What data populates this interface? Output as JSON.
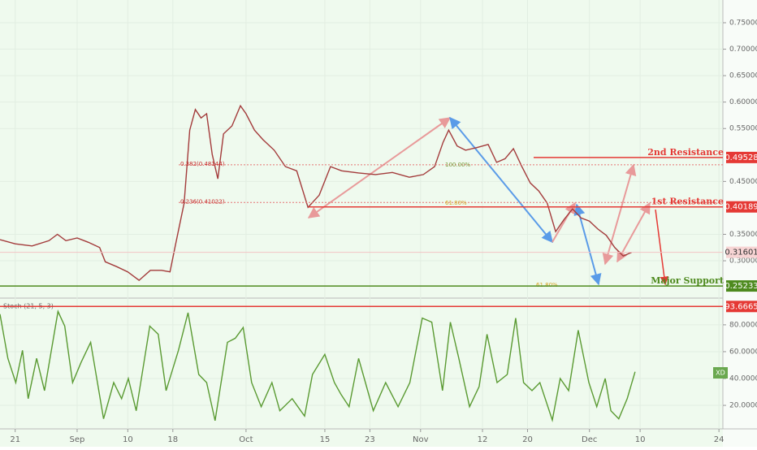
{
  "chart_data": [
    {
      "type": "line",
      "ylim": [
        0.2325,
        0.793
      ],
      "yticks": [
        {
          "value": 0.75,
          "label": "0.75000"
        },
        {
          "value": 0.7,
          "label": "0.70000"
        },
        {
          "value": 0.65,
          "label": "0.65000"
        },
        {
          "value": 0.6,
          "label": "0.60000"
        },
        {
          "value": 0.55,
          "label": "0.55000"
        },
        {
          "value": 0.45,
          "label": "0.45000"
        },
        {
          "value": 0.35,
          "label": "0.35000"
        },
        {
          "value": 0.3,
          "label": "0.30000"
        }
      ],
      "xlim": [
        -2.7,
        125.7
      ],
      "series": [
        {
          "color": "#a33b3b",
          "x": [
            -2.7,
            0,
            3,
            6,
            7.5,
            9,
            11,
            13,
            15,
            16,
            18,
            20,
            22,
            24,
            26,
            27.5,
            28.5,
            30,
            31,
            32,
            33,
            34,
            35,
            36,
            37,
            38.5,
            40,
            41,
            42.5,
            44,
            46,
            48,
            50,
            52,
            54,
            56,
            58,
            61,
            64,
            67,
            70,
            72.5,
            74.5,
            76,
            77,
            78.5,
            80,
            82,
            84,
            85.5,
            87,
            88.5,
            90,
            91.5,
            93,
            94.5,
            96,
            97.5,
            99,
            100.5,
            102,
            103.5,
            105,
            106.5,
            108,
            109.5
          ],
          "values": [
            0.34,
            0.332,
            0.328,
            0.338,
            0.35,
            0.338,
            0.343,
            0.335,
            0.325,
            0.298,
            0.289,
            0.279,
            0.263,
            0.282,
            0.282,
            0.279,
            0.332,
            0.409,
            0.547,
            0.586,
            0.57,
            0.578,
            0.501,
            0.455,
            0.54,
            0.555,
            0.593,
            0.578,
            0.547,
            0.529,
            0.509,
            0.478,
            0.47,
            0.401,
            0.424,
            0.478,
            0.47,
            0.466,
            0.463,
            0.467,
            0.458,
            0.463,
            0.478,
            0.524,
            0.547,
            0.517,
            0.509,
            0.514,
            0.52,
            0.486,
            0.493,
            0.512,
            0.478,
            0.447,
            0.432,
            0.409,
            0.355,
            0.378,
            0.398,
            0.381,
            0.375,
            0.36,
            0.348,
            0.325,
            0.309,
            0.316
          ]
        }
      ],
      "levels": [
        {
          "name": "2nd Resistance",
          "value": 0.49528,
          "color": "#e53935"
        },
        {
          "name": "1st Resistance",
          "value": 0.40189,
          "color": "#e53935"
        },
        {
          "name": "Major Support",
          "value": 0.25233,
          "color": "#4e8a1e"
        }
      ],
      "current_price": 0.31601,
      "fib_levels": [
        {
          "label": "0.382(0.48144)",
          "value": 0.48144
        },
        {
          "label": "0.236(0.41022)",
          "value": 0.41022
        }
      ],
      "annotations": [
        "100.00%",
        "61.80%",
        "61.80%"
      ]
    },
    {
      "type": "line",
      "title": "Stoch (21, 5, 3)",
      "ylim": [
        4.3,
        99.3
      ],
      "yticks": [
        {
          "value": 80,
          "label": "80.0000"
        },
        {
          "value": 60,
          "label": "60.0000"
        },
        {
          "value": 40,
          "label": "40.0000"
        },
        {
          "value": 20,
          "label": "20.0000"
        }
      ],
      "xlim": [
        -2.7,
        125.7
      ],
      "xticks": [
        {
          "value": 0,
          "label": "21"
        },
        {
          "value": 11,
          "label": "Sep"
        },
        {
          "value": 20,
          "label": "10"
        },
        {
          "value": 28,
          "label": "18"
        },
        {
          "value": 41,
          "label": "Oct"
        },
        {
          "value": 55,
          "label": "15"
        },
        {
          "value": 63,
          "label": "23"
        },
        {
          "value": 72,
          "label": "Nov"
        },
        {
          "value": 83,
          "label": "12"
        },
        {
          "value": 91,
          "label": "20"
        },
        {
          "value": 102,
          "label": "Dec"
        },
        {
          "value": 111,
          "label": "10"
        },
        {
          "value": 125,
          "label": "24"
        }
      ],
      "series": [
        {
          "color": "#5a9a32",
          "x": [
            -2.7,
            -1.3,
            0.1,
            1.3,
            2.3,
            3.8,
            5.2,
            7.6,
            8.8,
            10.2,
            11.7,
            13.4,
            15.7,
            17.5,
            18.9,
            20.1,
            21.5,
            23.9,
            25.4,
            26.8,
            29.0,
            30.7,
            32.6,
            34.0,
            35.5,
            37.7,
            39.1,
            40.5,
            42.0,
            43.7,
            45.6,
            47.0,
            49.2,
            51.4,
            52.8,
            55.0,
            56.7,
            57.9,
            59.3,
            61.0,
            62.2,
            63.6,
            65.8,
            68.0,
            70.1,
            72.3,
            74.0,
            75.9,
            77.3,
            78.8,
            80.7,
            82.4,
            83.8,
            85.6,
            87.4,
            88.9,
            90.3,
            91.8,
            93.2,
            95.4,
            96.8,
            98.3,
            100.0,
            101.9,
            103.3,
            104.8,
            105.8,
            107.2,
            108.7,
            110.1
          ],
          "values": [
            88,
            55,
            37,
            61,
            25,
            55,
            31,
            90,
            79,
            37,
            52,
            67,
            10,
            37,
            25,
            40,
            16,
            79,
            73,
            31,
            61,
            89,
            43,
            37,
            8.6,
            67,
            70,
            78,
            37,
            19,
            37,
            16,
            25,
            12,
            43,
            58,
            37,
            28,
            19,
            55,
            37,
            16,
            37,
            19,
            37,
            85,
            82,
            31,
            82,
            55,
            19,
            34,
            73,
            37,
            43,
            85,
            37,
            31,
            37,
            9,
            40,
            31,
            76,
            37,
            19,
            40,
            16,
            10,
            25,
            45
          ]
        }
      ],
      "level": 93.6665,
      "badge": "XD"
    }
  ]
}
